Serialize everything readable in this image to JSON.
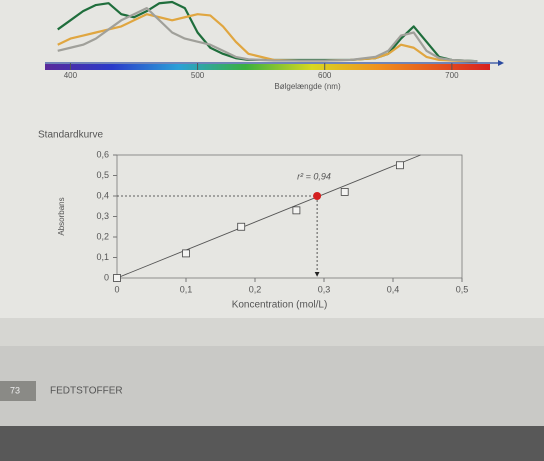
{
  "page": {
    "page_number": "73",
    "section": "FEDTSTOFFER"
  },
  "chart_data": [
    {
      "type": "line",
      "x_label": "Bølgelængde (nm)",
      "x": [
        390,
        400,
        410,
        420,
        430,
        440,
        450,
        460,
        470,
        480,
        490,
        500,
        510,
        520,
        530,
        540,
        560,
        580,
        600,
        620,
        640,
        650,
        660,
        670,
        680,
        690,
        700,
        710,
        720
      ],
      "xlim": [
        380,
        730
      ],
      "xticks": [
        400,
        500,
        600,
        700
      ],
      "ylim": [
        0,
        1
      ],
      "spectrum_bar": true,
      "series": [
        {
          "color": "#1f6e3c",
          "values": [
            0.55,
            0.7,
            0.85,
            0.95,
            0.98,
            0.8,
            0.75,
            0.85,
            0.98,
            1.0,
            0.9,
            0.5,
            0.25,
            0.15,
            0.08,
            0.05,
            0.05,
            0.05,
            0.05,
            0.05,
            0.08,
            0.15,
            0.4,
            0.6,
            0.35,
            0.1,
            0.05,
            0.04,
            0.03
          ]
        },
        {
          "color": "#e0a640",
          "values": [
            0.3,
            0.4,
            0.45,
            0.5,
            0.55,
            0.6,
            0.7,
            0.8,
            0.75,
            0.7,
            0.75,
            0.8,
            0.78,
            0.6,
            0.35,
            0.15,
            0.05,
            0.04,
            0.04,
            0.05,
            0.08,
            0.15,
            0.3,
            0.25,
            0.1,
            0.05,
            0.04,
            0.03,
            0.02
          ]
        },
        {
          "color": "#a0a09a",
          "values": [
            0.2,
            0.25,
            0.3,
            0.4,
            0.55,
            0.7,
            0.8,
            0.9,
            0.7,
            0.5,
            0.4,
            0.35,
            0.3,
            0.2,
            0.1,
            0.06,
            0.04,
            0.04,
            0.04,
            0.05,
            0.1,
            0.2,
            0.45,
            0.5,
            0.2,
            0.08,
            0.05,
            0.04,
            0.03
          ]
        }
      ]
    },
    {
      "type": "scatter",
      "title": "Standardkurve",
      "x_label": "Koncentration (mol/L)",
      "y_label": "Absorbans",
      "x": [
        0,
        0.1,
        0.18,
        0.26,
        0.33,
        0.41
      ],
      "values": [
        0,
        0.12,
        0.25,
        0.33,
        0.42,
        0.55
      ],
      "color": "#444444",
      "fit": {
        "x": [
          0,
          0.44
        ],
        "values": [
          0,
          0.6
        ]
      },
      "highlight": {
        "x": 0.29,
        "value": 0.4,
        "color": "#d42020"
      },
      "annotation": "r² = 0,94",
      "xlim": [
        0,
        0.5
      ],
      "ylim": [
        0,
        0.6
      ],
      "xticks": [
        0,
        {
          "value": 0.1,
          "label": "0,1"
        },
        {
          "value": 0.2,
          "label": "0,2"
        },
        {
          "value": 0.3,
          "label": "0,3"
        },
        {
          "value": 0.4,
          "label": "0,4"
        },
        {
          "value": 0.5,
          "label": "0,5"
        }
      ],
      "yticks": [
        0,
        {
          "value": 0.1,
          "label": "0,1"
        },
        {
          "value": 0.2,
          "label": "0,2"
        },
        {
          "value": 0.3,
          "label": "0,3"
        },
        {
          "value": 0.4,
          "label": "0,4"
        },
        {
          "value": 0.5,
          "label": "0,5"
        },
        {
          "value": 0.6,
          "label": "0,6"
        }
      ]
    }
  ]
}
